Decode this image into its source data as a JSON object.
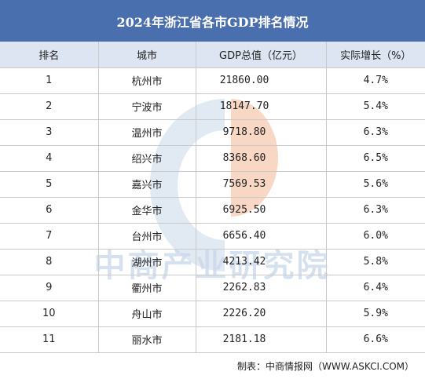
{
  "title": "2024年浙江省各市GDP排名情况",
  "columns": [
    "排名",
    "城市",
    "GDP总值（亿元）",
    "实际增长（%）"
  ],
  "rows": [
    {
      "rank": "1",
      "city": "杭州市",
      "gdp": "21860.00",
      "growth": "4.7%"
    },
    {
      "rank": "2",
      "city": "宁波市",
      "gdp": "18147.70",
      "growth": "5.4%"
    },
    {
      "rank": "3",
      "city": "温州市",
      "gdp": "9718.80",
      "growth": "6.3%"
    },
    {
      "rank": "4",
      "city": "绍兴市",
      "gdp": "8368.60",
      "growth": "6.5%"
    },
    {
      "rank": "5",
      "city": "嘉兴市",
      "gdp": "7569.53",
      "growth": "5.6%"
    },
    {
      "rank": "6",
      "city": "金华市",
      "gdp": "6925.50",
      "growth": "6.3%"
    },
    {
      "rank": "7",
      "city": "台州市",
      "gdp": "6656.40",
      "growth": "6.0%"
    },
    {
      "rank": "8",
      "city": "湖州市",
      "gdp": "4213.42",
      "growth": "5.8%"
    },
    {
      "rank": "9",
      "city": "衢州市",
      "gdp": "2262.83",
      "growth": "6.4%"
    },
    {
      "rank": "10",
      "city": "舟山市",
      "gdp": "2226.20",
      "growth": "5.9%"
    },
    {
      "rank": "11",
      "city": "丽水市",
      "gdp": "2181.18",
      "growth": "6.6%"
    }
  ],
  "watermark_text": "中商产业研究院",
  "source": "制表：中商情报网（WWW.ASKCI.COM）",
  "colors": {
    "title_bg": "#4a6fae",
    "header_bg": "#dde5f3",
    "watermark_blue": "#c9d7ea",
    "watermark_orange": "#f6c9b0"
  }
}
